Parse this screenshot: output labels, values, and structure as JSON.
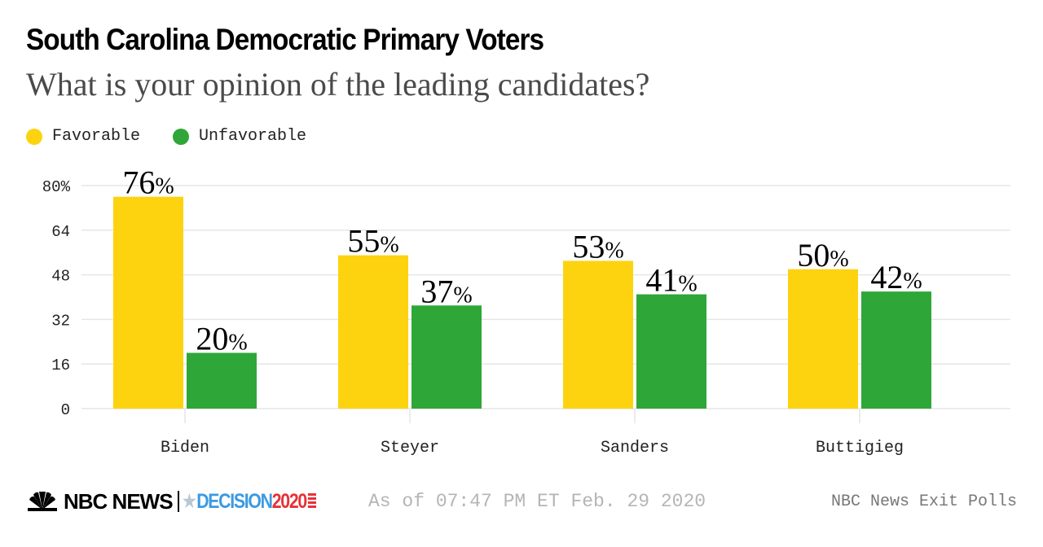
{
  "chart_data": {
    "type": "bar",
    "title": "South Carolina Democratic Primary Voters",
    "subtitle": "What is your opinion of the leading candidates?",
    "categories": [
      "Biden",
      "Steyer",
      "Sanders",
      "Buttigieg"
    ],
    "series": [
      {
        "name": "Favorable",
        "color": "#fdd30f",
        "values": [
          76,
          55,
          53,
          50
        ]
      },
      {
        "name": "Unfavorable",
        "color": "#2ea638",
        "values": [
          20,
          37,
          41,
          42
        ]
      }
    ],
    "y_ticks": [
      0,
      16,
      32,
      48,
      64,
      80
    ],
    "y_tick_labels": [
      "0",
      "16",
      "32",
      "48",
      "64",
      "80%"
    ],
    "ylim": [
      0,
      80
    ],
    "xlabel": "",
    "ylabel": "",
    "grid": true,
    "legend": "top-left",
    "value_suffix": "%"
  },
  "header": {
    "title": "South Carolina Democratic Primary Voters",
    "subtitle": "What is your opinion of the leading candidates?"
  },
  "legend": [
    {
      "label": "Favorable",
      "color": "#fdd30f"
    },
    {
      "label": "Unfavorable",
      "color": "#2ea638"
    }
  ],
  "footer": {
    "brand": "NBC NEWS",
    "decision_text": "DECISION",
    "decision_year": "2020",
    "timestamp": "As of 07:47 PM ET Feb. 29 2020",
    "source": "NBC News Exit Polls"
  }
}
